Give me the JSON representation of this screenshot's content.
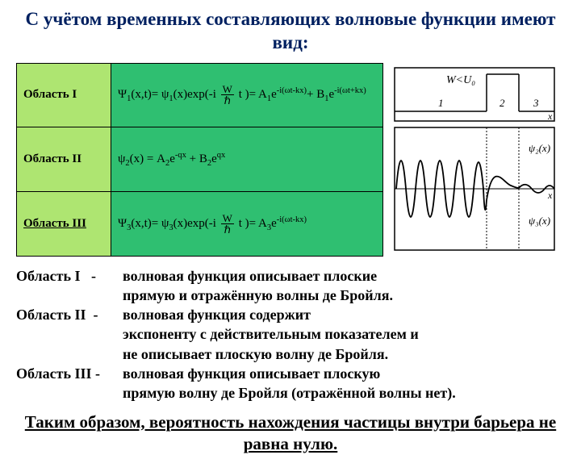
{
  "title": "С учётом временных составляющих волновые функции имеют вид:",
  "table": {
    "rows": [
      {
        "label": "Область I",
        "underline": false,
        "formula_html": "Ψ<sub>1</sub>(x,t)= ψ<sub>1</sub>(x)exp(-i <span class='frac'><span class='num'>W</span><span class='den'>ℏ</span></span> t )= A<sub>1</sub>e<sup>-i(ωt-kx)</sup>+ B<sub>1</sub>e<sup>-i(ωt+kx)</sup>"
      },
      {
        "label": "Область II",
        "underline": false,
        "formula_html": "ψ<sub>2</sub>(x) = A<sub>2</sub>e<sup>-qx</sup> + B<sub>2</sub>e<sup>qx</sup>"
      },
      {
        "label": "Область III",
        "underline": true,
        "formula_html": "Ψ<sub>3</sub>(x,t)= ψ<sub>3</sub>(x)exp(-i <span class='frac'><span class='num'>W</span><span class='den'>ℏ</span></span> t )= A<sub>3</sub>e<sup>-i(ωt-kx)</sup>"
      }
    ],
    "label_bg": "#aee571",
    "formula_bg": "#2fbf71"
  },
  "descriptions": [
    {
      "label": "Область I&nbsp;&nbsp;&nbsp;-",
      "text": "волновая функция описывает плоские<br>прямую и отражённую волны де Бройля."
    },
    {
      "label": "Область II&nbsp;&nbsp;-",
      "text": "волновая функция содержит<br>экспоненту с действительным показателем и<br>не описывает плоскую волну де Бройля."
    },
    {
      "label": "Область III -",
      "text": "волновая функция описывает плоскую<br>прямую волну де Бройля (отражённой волны нет)."
    }
  ],
  "conclusion": "Таким образом, вероятность нахождения частицы внутри барьера не равна нулю.",
  "diagram": {
    "barrier_label": "W<U₀",
    "region_labels": [
      "1",
      "2",
      "3"
    ],
    "psi_labels": [
      "ψ₂(x)",
      "ψ₃(x)"
    ],
    "axis_label": "x",
    "colors": {
      "stroke": "#000000",
      "bg": "#ffffff"
    },
    "description": "Two stacked plots: top shows rectangular potential barrier with height label W<U0 spanning region 2; bottom shows oscillating wave in region 1, exponentially decaying in region 2, small amplitude oscillation in region 3."
  }
}
